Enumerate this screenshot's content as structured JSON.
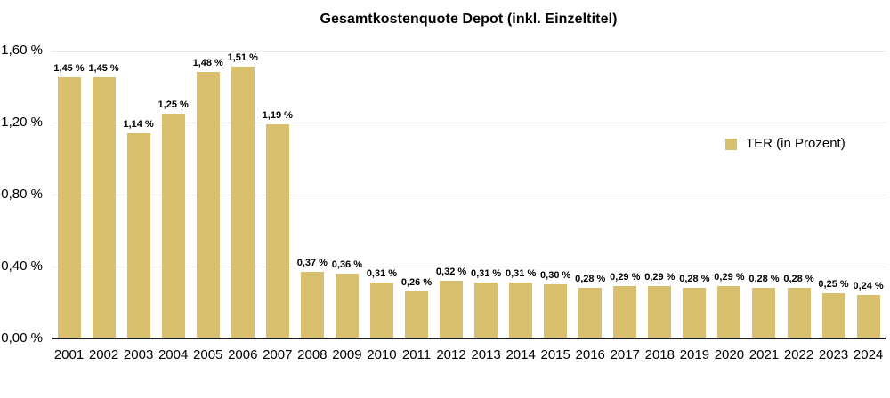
{
  "title": "Gesamtkostenquote Depot (inkl. Einzeltitel)",
  "legend": {
    "label": "TER (in Prozent)"
  },
  "colors": {
    "bar": "#d9c06e",
    "grid": "#e7e7e7",
    "axis": "#1a1a1a",
    "text": "#000000",
    "background": "#ffffff"
  },
  "chart_data": {
    "type": "bar",
    "title": "Gesamtkostenquote Depot (inkl. Einzeltitel)",
    "categories": [
      "2001",
      "2002",
      "2003",
      "2004",
      "2005",
      "2006",
      "2007",
      "2008",
      "2009",
      "2010",
      "2011",
      "2012",
      "2013",
      "2014",
      "2015",
      "2016",
      "2017",
      "2018",
      "2019",
      "2020",
      "2021",
      "2022",
      "2023",
      "2024"
    ],
    "values": [
      1.45,
      1.45,
      1.14,
      1.25,
      1.48,
      1.51,
      1.19,
      0.37,
      0.36,
      0.31,
      0.26,
      0.32,
      0.31,
      0.31,
      0.3,
      0.28,
      0.29,
      0.29,
      0.28,
      0.29,
      0.28,
      0.28,
      0.25,
      0.24
    ],
    "value_labels": [
      "1,45 %",
      "1,45 %",
      "1,14 %",
      "1,25 %",
      "1,48 %",
      "1,51 %",
      "1,19 %",
      "0,37 %",
      "0,36 %",
      "0,31 %",
      "0,26 %",
      "0,32 %",
      "0,31 %",
      "0,31 %",
      "0,30 %",
      "0,28 %",
      "0,29 %",
      "0,29 %",
      "0,28 %",
      "0,29 %",
      "0,28 %",
      "0,28 %",
      "0,25 %",
      "0,24 %"
    ],
    "series": [
      {
        "name": "TER (in Prozent)",
        "values": [
          1.45,
          1.45,
          1.14,
          1.25,
          1.48,
          1.51,
          1.19,
          0.37,
          0.36,
          0.31,
          0.26,
          0.32,
          0.31,
          0.31,
          0.3,
          0.28,
          0.29,
          0.29,
          0.28,
          0.29,
          0.28,
          0.28,
          0.25,
          0.24
        ]
      }
    ],
    "xlabel": "",
    "ylabel": "",
    "ylim": [
      0,
      1.6
    ],
    "yticks": {
      "values": [
        0.0,
        0.4,
        0.8,
        1.2,
        1.6
      ],
      "labels": [
        "0,00 %",
        "0,40 %",
        "0,80 %",
        "1,20 %",
        "1,60 %"
      ]
    },
    "grid": true,
    "legend_position": "right-middle"
  }
}
